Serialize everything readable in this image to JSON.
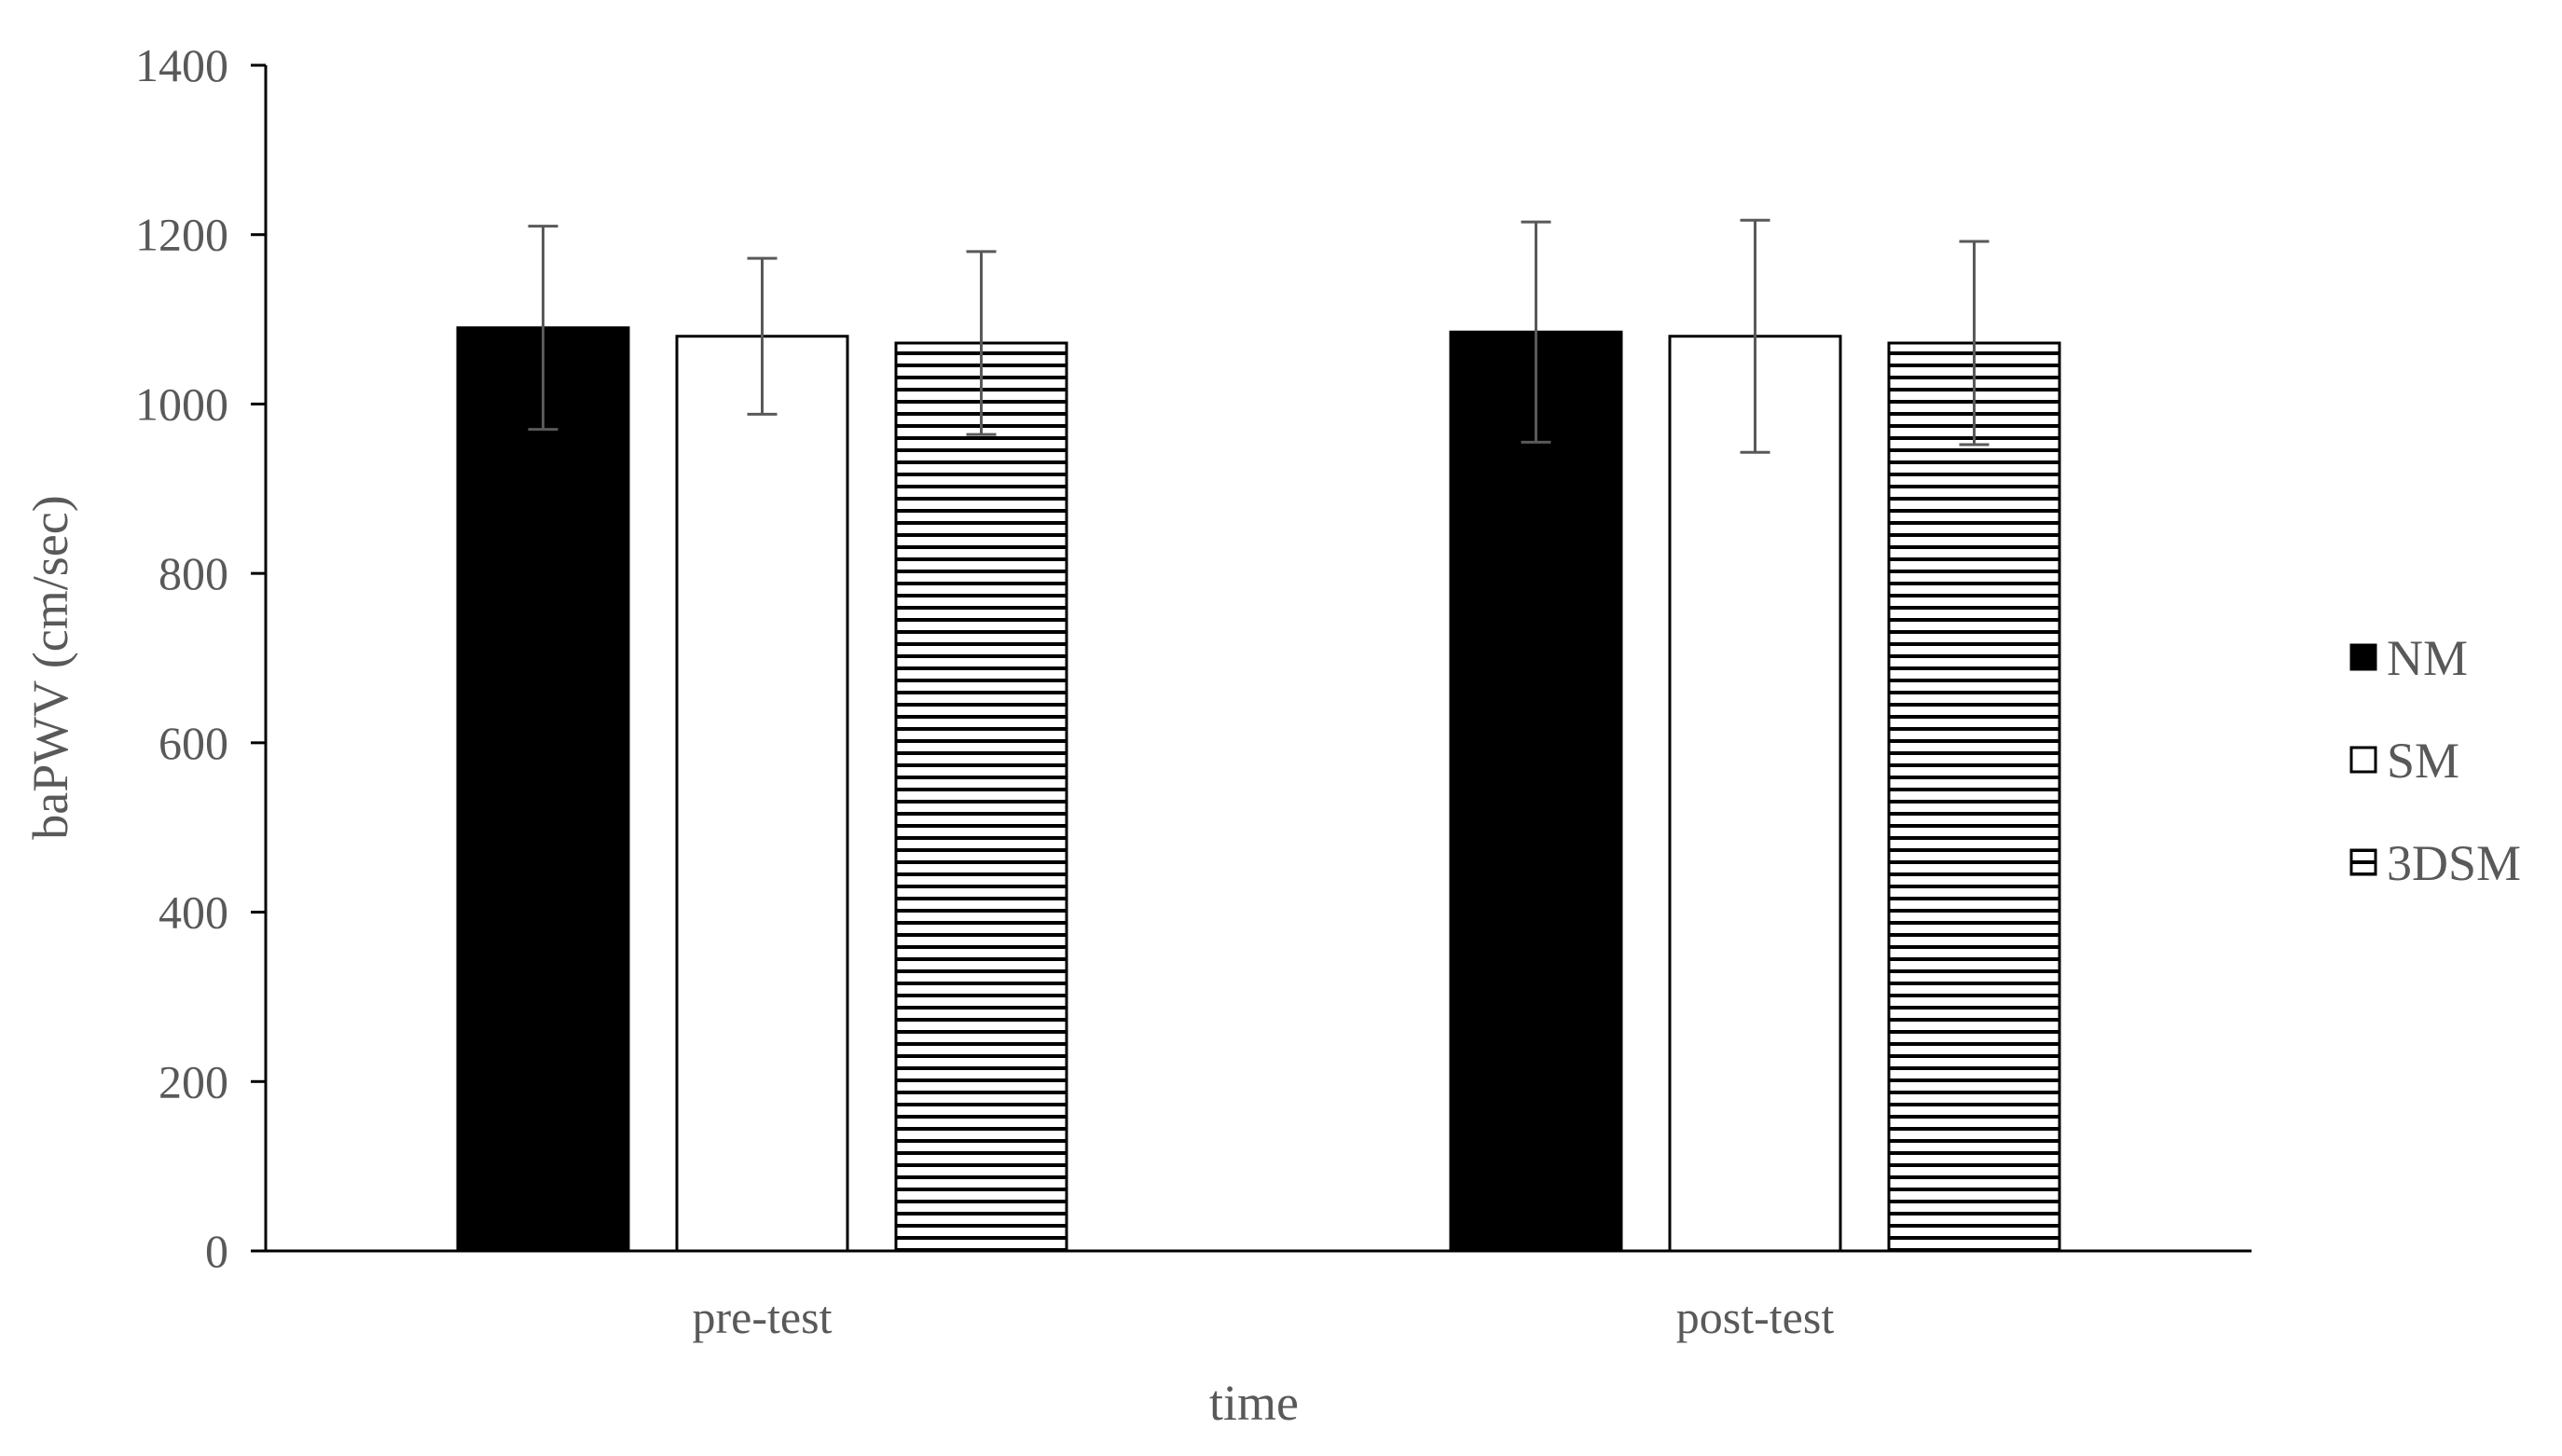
{
  "chart_data": {
    "type": "bar",
    "categories": [
      "pre-test",
      "post-test"
    ],
    "series": [
      {
        "name": "NM",
        "values": [
          1090,
          1085
        ],
        "error": [
          120,
          130
        ],
        "fill": "#000000",
        "pattern": "solid"
      },
      {
        "name": "SM",
        "values": [
          1080,
          1080
        ],
        "error": [
          92,
          137
        ],
        "fill": "#ffffff",
        "pattern": "none"
      },
      {
        "name": "3DSM",
        "values": [
          1072,
          1072
        ],
        "error": [
          108,
          120
        ],
        "fill": "#ffffff",
        "pattern": "horizontal-stripes"
      }
    ],
    "xlabel": "time",
    "ylabel": "baPWV (cm/sec)",
    "ylim": [
      0,
      1400
    ],
    "yticks": [
      "0",
      "200",
      "400",
      "600",
      "800",
      "1000",
      "1200",
      "1400"
    ],
    "grid": false,
    "legend": "right",
    "colors": {
      "text": "#595959",
      "axis": "#000000",
      "errorbar": "#595959"
    }
  }
}
